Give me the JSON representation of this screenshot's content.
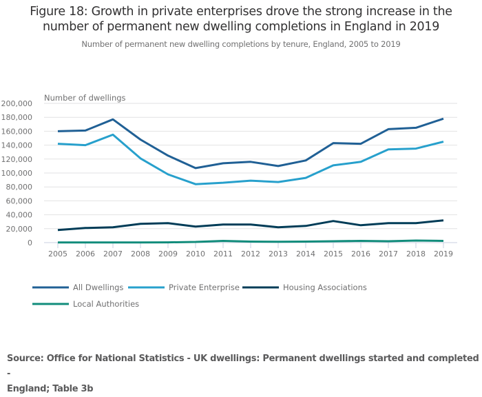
{
  "header": {
    "title_line1": "Figure 18: Growth in private enterprises drove the strong increase in the",
    "title_line2": "number of permanent new dwelling completions in England in 2019",
    "subtitle": "Number of permanent new dwelling completions by tenure, England, 2005 to 2019"
  },
  "source": {
    "line1": "Source: Office for National Statistics - UK dwellings:  Permanent dwellings started and completed -",
    "line2": "England; Table 3b"
  },
  "chart_data": {
    "type": "line",
    "title": "Figure 18: Growth in private enterprises drove the strong increase in the number of permanent new dwelling completions in England in 2019",
    "subtitle": "Number of permanent new dwelling completions by tenure, England, 2005 to 2019",
    "xlabel": "",
    "ylabel": "Number of dwellings",
    "ylim": [
      0,
      200000
    ],
    "yticks": [
      0,
      20000,
      40000,
      60000,
      80000,
      100000,
      120000,
      140000,
      160000,
      180000,
      200000
    ],
    "ytick_labels": [
      "0",
      "20,000",
      "40,000",
      "60,000",
      "80,000",
      "100,000",
      "120,000",
      "140,000",
      "160,000",
      "180,000",
      "200,000"
    ],
    "x": [
      "2005",
      "2006",
      "2007",
      "2008",
      "2009",
      "2010",
      "2011",
      "2012",
      "2013",
      "2014",
      "2015",
      "2016",
      "2017",
      "2018",
      "2019"
    ],
    "grid": true,
    "legend_position": "bottom-left",
    "series": [
      {
        "name": "All Dwellings",
        "color": "#206095",
        "values": [
          160000,
          161000,
          177000,
          148000,
          125000,
          107000,
          114000,
          116000,
          110000,
          118000,
          143000,
          142000,
          163000,
          165000,
          178000
        ]
      },
      {
        "name": "Private Enterprise",
        "color": "#27a0cc",
        "values": [
          142000,
          140000,
          155000,
          121000,
          98000,
          84000,
          86000,
          89000,
          87000,
          93000,
          111000,
          116000,
          134000,
          135000,
          145000
        ]
      },
      {
        "name": "Housing Associations",
        "color": "#003c57",
        "values": [
          18000,
          21000,
          22000,
          27000,
          28000,
          23000,
          26000,
          26000,
          22000,
          24000,
          31000,
          25000,
          28000,
          28000,
          32000
        ]
      },
      {
        "name": "Local Authorities",
        "color": "#118c7b",
        "values": [
          300,
          300,
          300,
          300,
          400,
          1000,
          2500,
          1500,
          1200,
          1500,
          2000,
          2500,
          2000,
          3000,
          2500
        ]
      }
    ]
  }
}
